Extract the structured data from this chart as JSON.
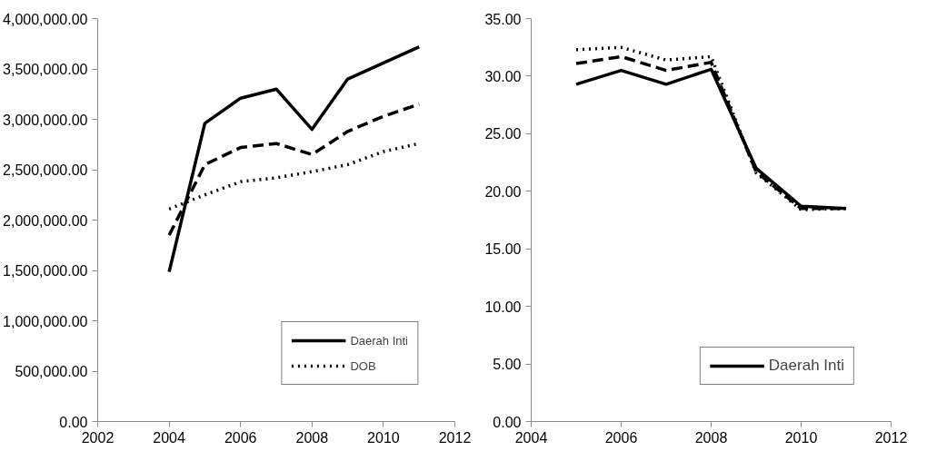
{
  "chart_data": [
    {
      "type": "line",
      "x": [
        2004,
        2005,
        2006,
        2007,
        2008,
        2009,
        2010,
        2011
      ],
      "xlim": [
        2002,
        2012
      ],
      "xticks": [
        2002,
        2004,
        2006,
        2008,
        2010,
        2012
      ],
      "ylim": [
        0,
        4000000
      ],
      "yticks": [
        {
          "value": 0,
          "label": "0.00"
        },
        {
          "value": 500000,
          "label": "500,000.00"
        },
        {
          "value": 1000000,
          "label": "1,000,000.00"
        },
        {
          "value": 1500000,
          "label": "1,500,000.00"
        },
        {
          "value": 2000000,
          "label": "2,000,000.00"
        },
        {
          "value": 2500000,
          "label": "2,500,000.00"
        },
        {
          "value": 3000000,
          "label": "3,000,000.00"
        },
        {
          "value": 3500000,
          "label": "3,500,000.00"
        },
        {
          "value": 4000000,
          "label": "4,000,000.00"
        }
      ],
      "grid": false,
      "legend": "bottom right",
      "series": [
        {
          "name": "Daerah Inti",
          "color": "#000000",
          "line_style": "solid",
          "values": [
            1485000,
            2960000,
            3210000,
            3300000,
            2900000,
            3400000,
            3560000,
            3720000
          ]
        },
        {
          "color": "#000000",
          "line_style": "dashed",
          "values": [
            1850000,
            2550000,
            2720000,
            2760000,
            2650000,
            2880000,
            3030000,
            3150000
          ]
        },
        {
          "name": "DOB",
          "color": "#000000",
          "line_style": "dotted",
          "values": [
            2110000,
            2250000,
            2380000,
            2420000,
            2480000,
            2550000,
            2680000,
            2760000
          ]
        }
      ]
    },
    {
      "type": "line",
      "x": [
        2005,
        2006,
        2007,
        2008,
        2009,
        2010,
        2011
      ],
      "xlim": [
        2004,
        2012
      ],
      "xticks": [
        2004,
        2006,
        2008,
        2010,
        2012
      ],
      "ylim": [
        0,
        35
      ],
      "yticks": [
        {
          "value": 0,
          "label": "0.00"
        },
        {
          "value": 5,
          "label": "5.00"
        },
        {
          "value": 10,
          "label": "10.00"
        },
        {
          "value": 15,
          "label": "15.00"
        },
        {
          "value": 20,
          "label": "20.00"
        },
        {
          "value": 25,
          "label": "25.00"
        },
        {
          "value": 30,
          "label": "30.00"
        },
        {
          "value": 35,
          "label": "35.00"
        }
      ],
      "grid": false,
      "legend": "bottom right",
      "series": [
        {
          "name": "Daerah Inti",
          "color": "#000000",
          "line_style": "solid",
          "values": [
            29.3,
            30.5,
            29.3,
            30.6,
            22.0,
            18.7,
            18.5
          ]
        },
        {
          "color": "#000000",
          "line_style": "dashed",
          "values": [
            31.1,
            31.7,
            30.5,
            31.2,
            21.7,
            18.5,
            18.5
          ]
        },
        {
          "color": "#000000",
          "line_style": "dotted",
          "values": [
            32.3,
            32.5,
            31.4,
            31.7,
            21.6,
            18.4,
            18.5
          ]
        }
      ]
    }
  ]
}
